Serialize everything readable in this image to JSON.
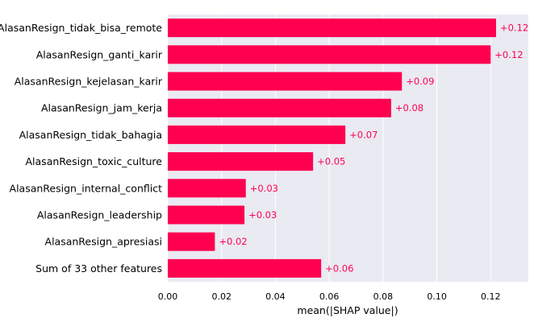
{
  "chart_data": {
    "type": "bar",
    "orientation": "horizontal",
    "categories": [
      "AlasanResign_tidak_bisa_remote",
      "AlasanResign_ganti_karir",
      "AlasanResign_kejelasan_karir",
      "AlasanResign_jam_kerja",
      "AlasanResign_tidak_bahagia",
      "AlasanResign_toxic_culture",
      "AlasanResign_internal_conflict",
      "AlasanResign_leadership",
      "AlasanResign_apresiasi",
      "Sum of 33 other features"
    ],
    "values": [
      0.122,
      0.12,
      0.087,
      0.083,
      0.066,
      0.054,
      0.029,
      0.0285,
      0.0175,
      0.057
    ],
    "data_labels": [
      "+0.12",
      "+0.12",
      "+0.09",
      "+0.08",
      "+0.07",
      "+0.05",
      "+0.03",
      "+0.03",
      "+0.02",
      "+0.06"
    ],
    "xlabel": "mean(|SHAP value|)",
    "ylabel": "",
    "title": "",
    "xlim": [
      0,
      0.134
    ],
    "xticks": [
      0.0,
      0.02,
      0.04,
      0.06,
      0.08,
      0.1,
      0.12
    ],
    "xtick_labels": [
      "0.00",
      "0.02",
      "0.04",
      "0.06",
      "0.08",
      "0.10",
      "0.12"
    ],
    "grid": true,
    "colors": {
      "bar": "#ff0051",
      "label": "#ff0051",
      "background": "#eaeaf2",
      "grid": "#ffffff"
    }
  }
}
